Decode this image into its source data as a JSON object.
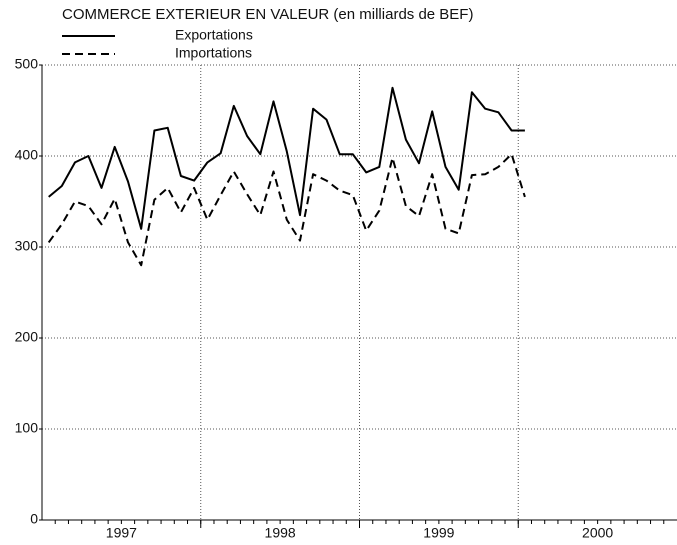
{
  "chart_data": {
    "type": "line",
    "title": "COMMERCE EXTERIEUR EN VALEUR (en milliards de BEF)",
    "x": [
      1997.042,
      1997.125,
      1997.208,
      1997.292,
      1997.375,
      1997.458,
      1997.542,
      1997.625,
      1997.708,
      1997.792,
      1997.875,
      1997.958,
      1998.042,
      1998.125,
      1998.208,
      1998.292,
      1998.375,
      1998.458,
      1998.542,
      1998.625,
      1998.708,
      1998.792,
      1998.875,
      1998.958,
      1999.042,
      1999.125,
      1999.208,
      1999.292,
      1999.375,
      1999.458,
      1999.542,
      1999.625,
      1999.708,
      1999.792,
      1999.875,
      1999.958,
      2000.042
    ],
    "series": [
      {
        "name": "Exportations",
        "color": "#000000",
        "dash": false,
        "values": [
          355,
          367,
          393,
          400,
          365,
          410,
          372,
          320,
          428,
          431,
          378,
          373,
          393,
          403,
          455,
          422,
          402,
          460,
          405,
          335,
          452,
          440,
          402,
          402,
          382,
          388,
          475,
          418,
          392,
          449,
          388,
          363,
          470,
          452,
          448,
          428,
          428
        ]
      },
      {
        "name": "Importations",
        "color": "#000000",
        "dash": true,
        "values": [
          305,
          325,
          350,
          345,
          325,
          353,
          305,
          280,
          352,
          365,
          338,
          365,
          330,
          357,
          383,
          358,
          335,
          383,
          330,
          307,
          380,
          373,
          362,
          357,
          318,
          340,
          398,
          345,
          334,
          380,
          320,
          315,
          379,
          380,
          388,
          402,
          355
        ]
      }
    ],
    "xlim": [
      1997,
      2001
    ],
    "xticks": [
      {
        "value": 1997.5,
        "label": "1997"
      },
      {
        "value": 1998.5,
        "label": "1998"
      },
      {
        "value": 1999.5,
        "label": "1999"
      },
      {
        "value": 2000.5,
        "label": "2000"
      }
    ],
    "xgrid": [
      1998,
      1999,
      2000
    ],
    "ylim": [
      0,
      500
    ],
    "yticks": [
      0,
      100,
      200,
      300,
      400,
      500
    ],
    "grid": true
  }
}
